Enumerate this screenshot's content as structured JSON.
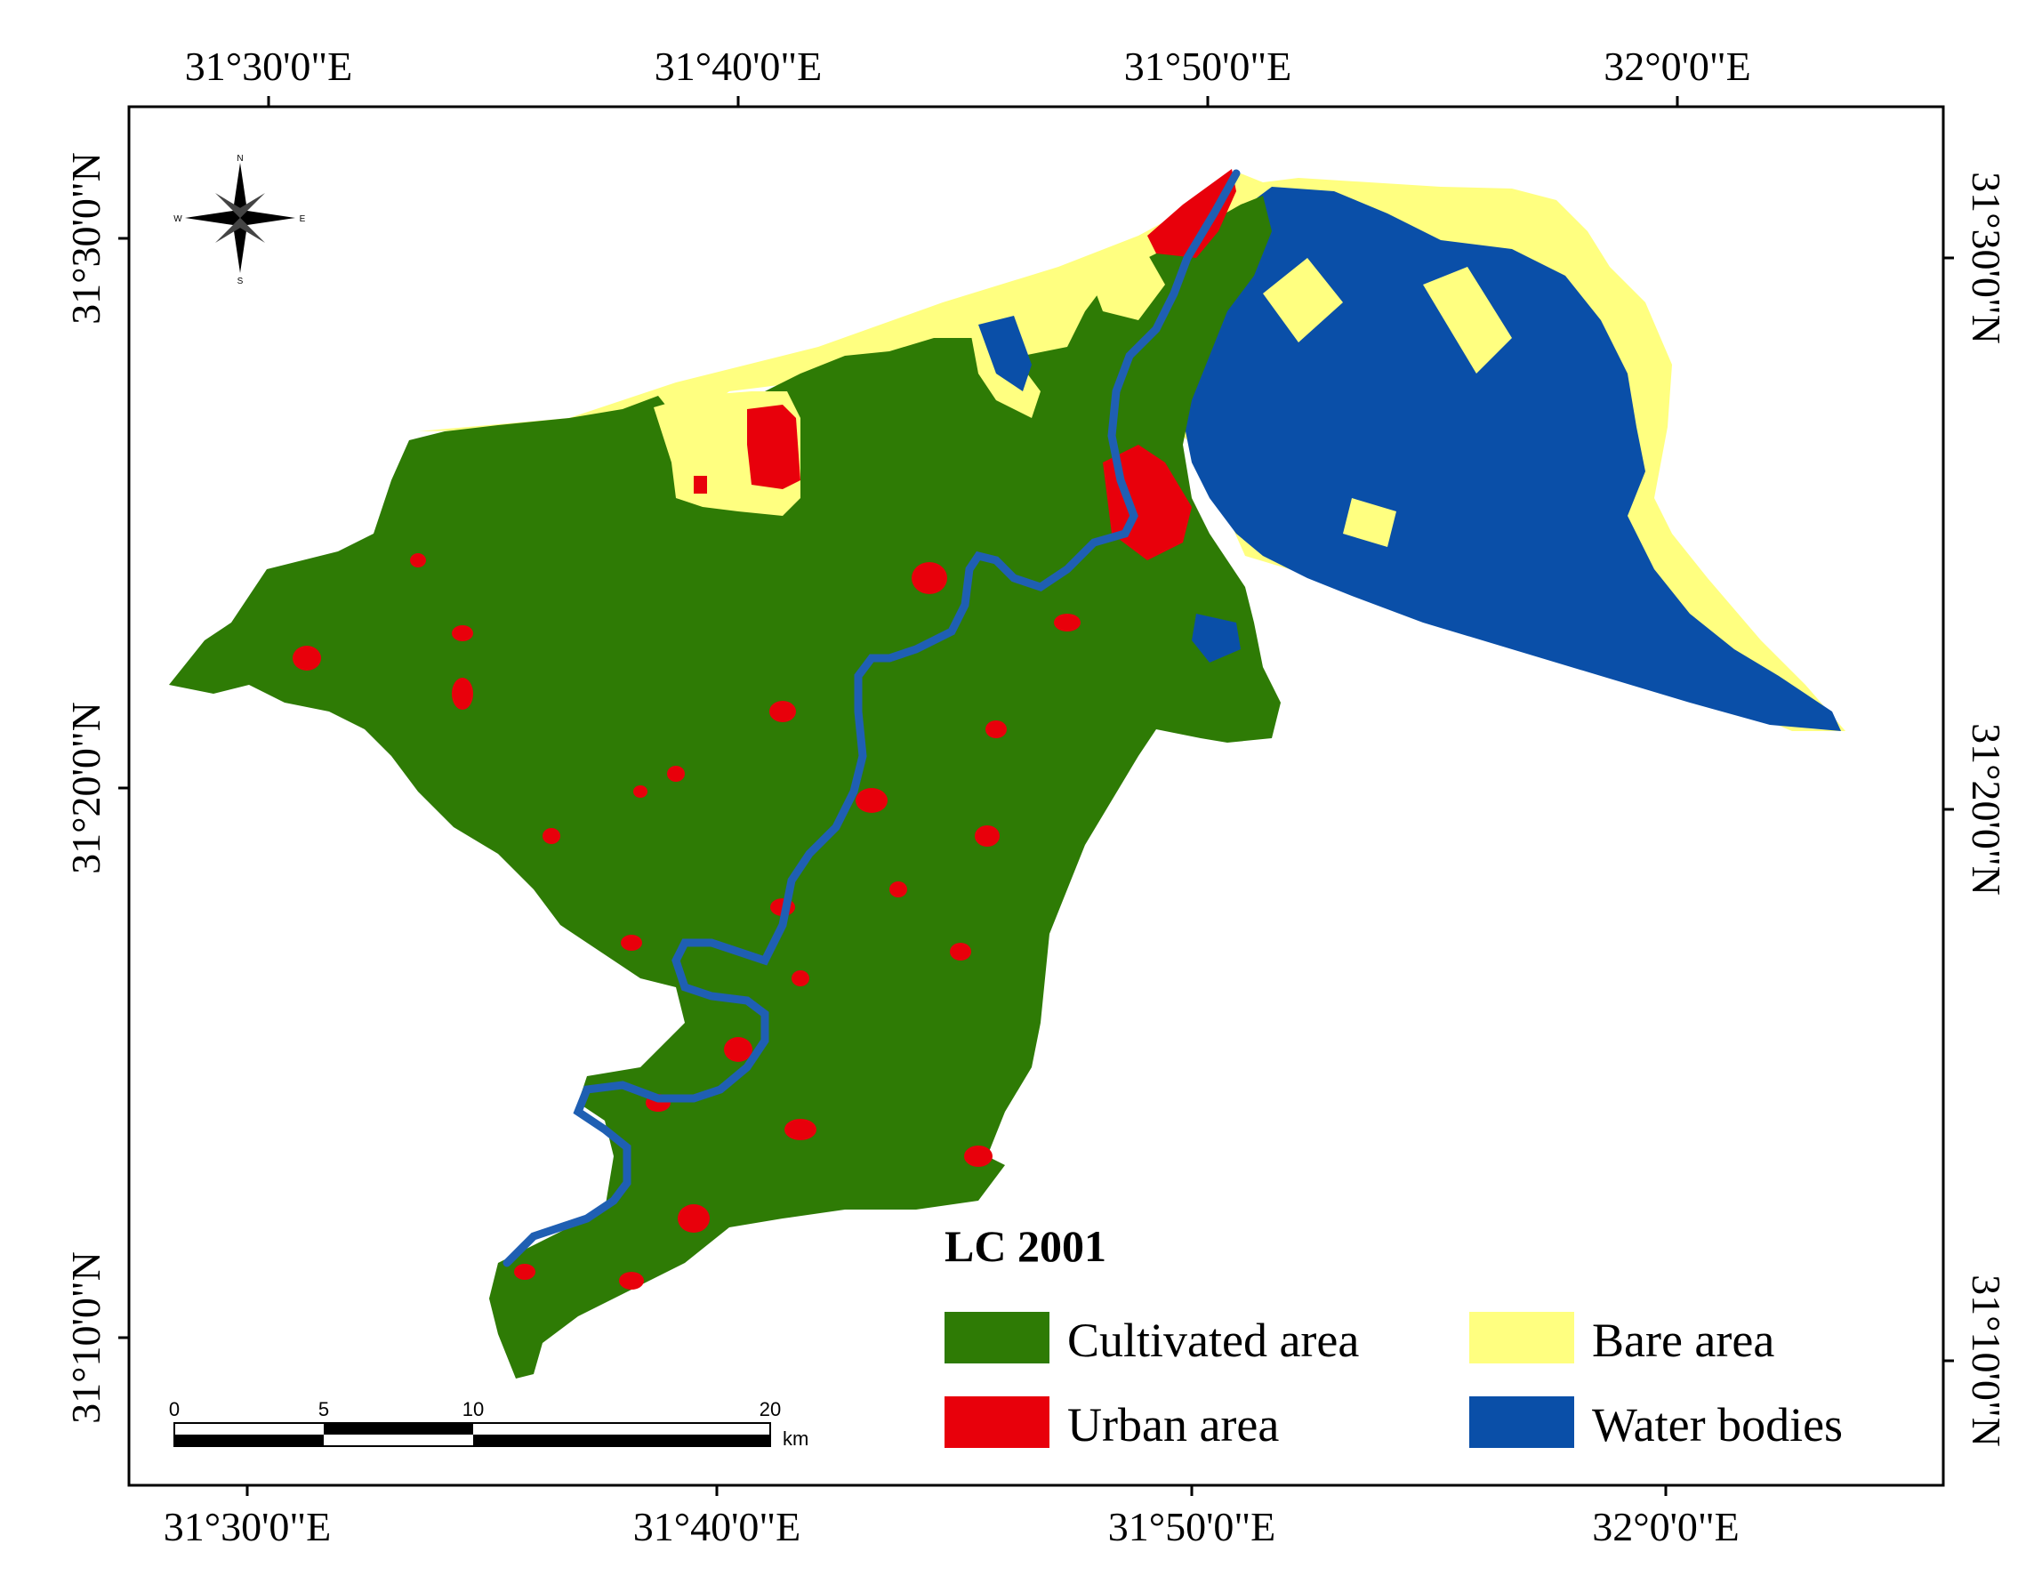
{
  "map": {
    "legend_title": "LC 2001",
    "classes": [
      {
        "label": "Cultivated area",
        "color": "#2e7b05"
      },
      {
        "label": "Urban area",
        "color": "#e8000b"
      },
      {
        "label": "Bare area",
        "color": "#ffff80"
      },
      {
        "label": "Water bodies",
        "color": "#0a4fa8"
      }
    ],
    "top_ticks": [
      "31°30'0\"E",
      "31°40'0\"E",
      "31°50'0\"E",
      "32°0'0\"E"
    ],
    "bottom_ticks": [
      "31°30'0\"E",
      "31°40'0\"E",
      "31°50'0\"E",
      "32°0'0\"E"
    ],
    "left_ticks": [
      "31°30'0\"N",
      "31°20'0\"N",
      "31°10'0\"N"
    ],
    "right_ticks": [
      "31°30'0\"N",
      "31°20'0\"N",
      "31°10'0\"N"
    ],
    "scale_bar": {
      "labels": [
        "0",
        "5",
        "10",
        "20"
      ],
      "unit": "km"
    },
    "north_arrow": {
      "n": "N",
      "s": "S",
      "e": "E",
      "w": "W"
    }
  }
}
